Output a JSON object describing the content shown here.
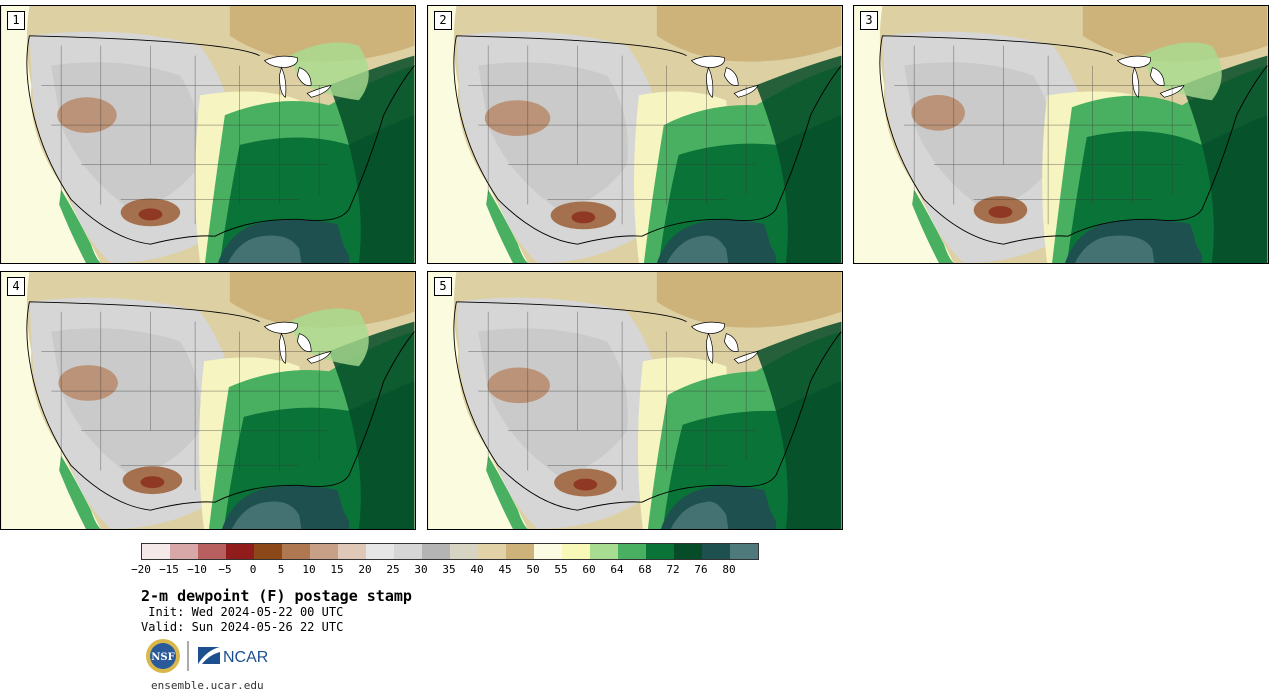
{
  "panels": [
    {
      "label": "1"
    },
    {
      "label": "2"
    },
    {
      "label": "3"
    },
    {
      "label": "4"
    },
    {
      "label": "5"
    }
  ],
  "colorbar": {
    "colors": [
      "#f4e8e8",
      "#d8a8a8",
      "#b86060",
      "#901c1c",
      "#8c4818",
      "#b07850",
      "#c8a088",
      "#e0c8b8",
      "#e6e6e6",
      "#d6d6d6",
      "#b4b4b4",
      "#d8d4c4",
      "#e2d2a8",
      "#cdb27a",
      "#fbfbe4",
      "#f8f8b8",
      "#a8dc90",
      "#48b060",
      "#0a7438",
      "#064c28",
      "#1e5050",
      "#4e7a7c"
    ],
    "ticks": [
      "−20",
      "−15",
      "−10",
      "−5",
      "0",
      "5",
      "10",
      "15",
      "20",
      "25",
      "30",
      "35",
      "40",
      "45",
      "50",
      "55",
      "60",
      "64",
      "68",
      "72",
      "76",
      "80"
    ]
  },
  "title": "2-m dewpoint (F) postage stamp",
  "init_line": " Init: Wed 2024-05-22 00 UTC",
  "valid_line": "Valid: Sun 2024-05-26 22 UTC",
  "logos": {
    "nsf": "NSF",
    "ncar": "NCAR"
  },
  "footer": "ensemble.ucar.edu"
}
